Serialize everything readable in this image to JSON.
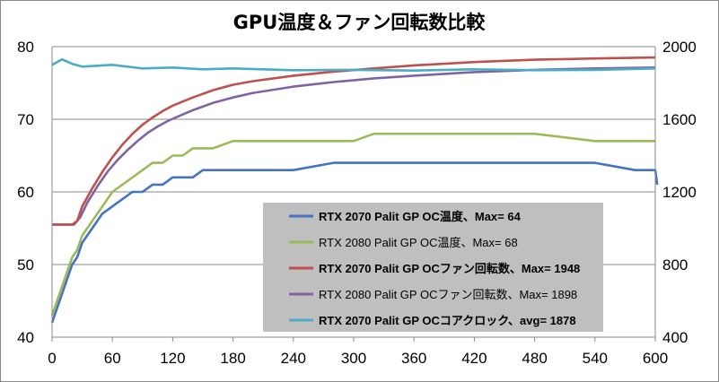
{
  "chart_data": {
    "type": "line",
    "title": "GPU温度＆ファン回転数比較",
    "x_ticks": [
      0,
      60,
      120,
      180,
      240,
      300,
      360,
      420,
      480,
      540,
      600
    ],
    "y_left_ticks": [
      40,
      50,
      60,
      70,
      80
    ],
    "y_right_ticks": [
      400,
      800,
      1200,
      1600,
      2000
    ],
    "xlim": [
      0,
      600
    ],
    "ylim_left": [
      40,
      80
    ],
    "ylim_right": [
      400,
      2000
    ],
    "grid": "horizontal",
    "legend_position": "center-right",
    "series": [
      {
        "name": "RTX 2070 Palit GP OC温度、Max= 64",
        "axis": "left",
        "color": "#4472C4",
        "bold": true,
        "points": [
          [
            0,
            42
          ],
          [
            5,
            44
          ],
          [
            10,
            46
          ],
          [
            15,
            48
          ],
          [
            20,
            50
          ],
          [
            25,
            51
          ],
          [
            30,
            53
          ],
          [
            35,
            54
          ],
          [
            40,
            55
          ],
          [
            45,
            56
          ],
          [
            50,
            57
          ],
          [
            60,
            58
          ],
          [
            70,
            59
          ],
          [
            80,
            60
          ],
          [
            90,
            60
          ],
          [
            100,
            61
          ],
          [
            110,
            61
          ],
          [
            120,
            62
          ],
          [
            130,
            62
          ],
          [
            140,
            62
          ],
          [
            150,
            63
          ],
          [
            180,
            63
          ],
          [
            240,
            63
          ],
          [
            280,
            64
          ],
          [
            300,
            64
          ],
          [
            360,
            64
          ],
          [
            420,
            64
          ],
          [
            480,
            64
          ],
          [
            540,
            64
          ],
          [
            580,
            63
          ],
          [
            600,
            63
          ],
          [
            602,
            61
          ]
        ]
      },
      {
        "name": "RTX 2080 Palit GP OC温度、Max= 68",
        "axis": "left",
        "color": "#9BBB59",
        "bold": false,
        "points": [
          [
            0,
            43
          ],
          [
            5,
            45
          ],
          [
            10,
            47
          ],
          [
            15,
            49
          ],
          [
            20,
            51
          ],
          [
            25,
            52
          ],
          [
            30,
            54
          ],
          [
            35,
            55
          ],
          [
            40,
            56
          ],
          [
            45,
            57
          ],
          [
            50,
            58
          ],
          [
            60,
            60
          ],
          [
            70,
            61
          ],
          [
            80,
            62
          ],
          [
            90,
            63
          ],
          [
            100,
            64
          ],
          [
            110,
            64
          ],
          [
            120,
            65
          ],
          [
            130,
            65
          ],
          [
            140,
            66
          ],
          [
            160,
            66
          ],
          [
            180,
            67
          ],
          [
            240,
            67
          ],
          [
            300,
            67
          ],
          [
            320,
            68
          ],
          [
            360,
            68
          ],
          [
            420,
            68
          ],
          [
            480,
            68
          ],
          [
            540,
            67
          ],
          [
            600,
            67
          ]
        ]
      },
      {
        "name": "RTX 2070 Palit GP OCファン回転数、Max= 1948",
        "axis": "right",
        "color": "#C0504D",
        "bold": true,
        "points": [
          [
            0,
            1020
          ],
          [
            20,
            1020
          ],
          [
            25,
            1040
          ],
          [
            30,
            1120
          ],
          [
            40,
            1220
          ],
          [
            50,
            1310
          ],
          [
            60,
            1390
          ],
          [
            70,
            1460
          ],
          [
            80,
            1520
          ],
          [
            90,
            1570
          ],
          [
            100,
            1610
          ],
          [
            110,
            1645
          ],
          [
            120,
            1675
          ],
          [
            140,
            1720
          ],
          [
            160,
            1760
          ],
          [
            180,
            1790
          ],
          [
            200,
            1810
          ],
          [
            240,
            1840
          ],
          [
            280,
            1862
          ],
          [
            320,
            1880
          ],
          [
            360,
            1897
          ],
          [
            420,
            1915
          ],
          [
            480,
            1928
          ],
          [
            540,
            1935
          ],
          [
            600,
            1940
          ]
        ]
      },
      {
        "name": "RTX 2080 Palit GP OCファン回転数、Max= 1898",
        "axis": "right",
        "color": "#8064A2",
        "bold": false,
        "points": [
          [
            0,
            1020
          ],
          [
            22,
            1020
          ],
          [
            28,
            1060
          ],
          [
            35,
            1140
          ],
          [
            45,
            1230
          ],
          [
            55,
            1310
          ],
          [
            65,
            1375
          ],
          [
            75,
            1430
          ],
          [
            85,
            1480
          ],
          [
            95,
            1525
          ],
          [
            105,
            1560
          ],
          [
            115,
            1590
          ],
          [
            125,
            1615
          ],
          [
            140,
            1650
          ],
          [
            160,
            1690
          ],
          [
            180,
            1720
          ],
          [
            200,
            1745
          ],
          [
            240,
            1780
          ],
          [
            280,
            1805
          ],
          [
            320,
            1825
          ],
          [
            360,
            1840
          ],
          [
            420,
            1860
          ],
          [
            480,
            1872
          ],
          [
            540,
            1880
          ],
          [
            600,
            1885
          ]
        ]
      },
      {
        "name": "RTX 2070 Palit GP OCコアクロック、avg= 1878",
        "axis": "right",
        "color": "#4BACC6",
        "bold": true,
        "points": [
          [
            0,
            1900
          ],
          [
            10,
            1930
          ],
          [
            20,
            1905
          ],
          [
            30,
            1890
          ],
          [
            60,
            1900
          ],
          [
            90,
            1880
          ],
          [
            120,
            1885
          ],
          [
            150,
            1875
          ],
          [
            180,
            1880
          ],
          [
            240,
            1870
          ],
          [
            300,
            1872
          ],
          [
            360,
            1868
          ],
          [
            420,
            1875
          ],
          [
            480,
            1870
          ],
          [
            540,
            1872
          ],
          [
            600,
            1880
          ]
        ]
      }
    ]
  }
}
